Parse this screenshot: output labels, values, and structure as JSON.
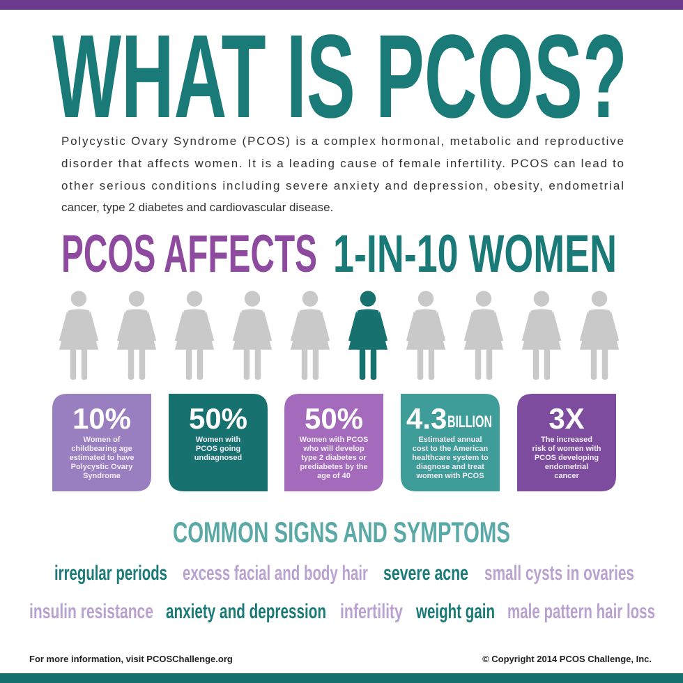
{
  "title": "WHAT IS PCOS?",
  "intro": [
    "Polycystic Ovary Syndrome (PCOS) is a complex hormonal, metabolic and reproductive",
    "disorder that affects women. It is a leading cause of female infertility. PCOS can lead to",
    "other serious conditions including severe anxiety and depression, obesity, endometrial",
    "cancer, type 2 diabetes and cardiovascular disease."
  ],
  "headline": {
    "left": "PCOS AFFECTS",
    "right": "1-IN-10 WOMEN"
  },
  "stats": [
    {
      "figure": "10%",
      "color": "#9a7fc0",
      "lines": [
        "Women of",
        "childbearing age",
        "estimated to have",
        "Polycystic Ovary",
        "Syndrome"
      ]
    },
    {
      "figure": "50%",
      "color": "#16716f",
      "lines": [
        "Women with",
        "PCOS going",
        "undiagnosed"
      ]
    },
    {
      "figure": "50%",
      "color": "#a46bbd",
      "lines": [
        "Women with PCOS",
        "who will develop",
        "type 2 diabetes or",
        "prediabetes by the",
        "age of 40"
      ]
    },
    {
      "figure": "4.3",
      "unit": "BILLION",
      "color": "#3f9d99",
      "lines": [
        "Estimated annual",
        "cost to the American",
        "healthcare system to",
        "diagnose and treat",
        "women with PCOS"
      ]
    },
    {
      "figure": "3X",
      "color": "#7e4c9f",
      "lines": [
        "The increased",
        "risk of women with",
        "PCOS developing",
        "endometrial",
        "cancer"
      ]
    }
  ],
  "symptoms_title": "COMMON SIGNS AND SYMPTOMS",
  "symptoms": [
    [
      {
        "text": "irregular periods",
        "color": "#1a7a78"
      },
      {
        "text": "excess facial and body hair",
        "color": "#b9a2cf"
      },
      {
        "text": "severe acne",
        "color": "#1a7a78"
      },
      {
        "text": "small cysts in ovaries",
        "color": "#b9a2cf"
      }
    ],
    [
      {
        "text": "insulin resistance",
        "color": "#b9a2cf"
      },
      {
        "text": "anxiety and depression",
        "color": "#1a7a78"
      },
      {
        "text": "infertility",
        "color": "#b9a2cf"
      },
      {
        "text": "weight gain",
        "color": "#1a7a78"
      },
      {
        "text": "male pattern hair loss",
        "color": "#b9a2cf"
      }
    ]
  ],
  "footer": {
    "left": "For more information, visit PCOSChallenge.org",
    "right": "© Copyright 2014 PCOS Challenge, Inc."
  }
}
